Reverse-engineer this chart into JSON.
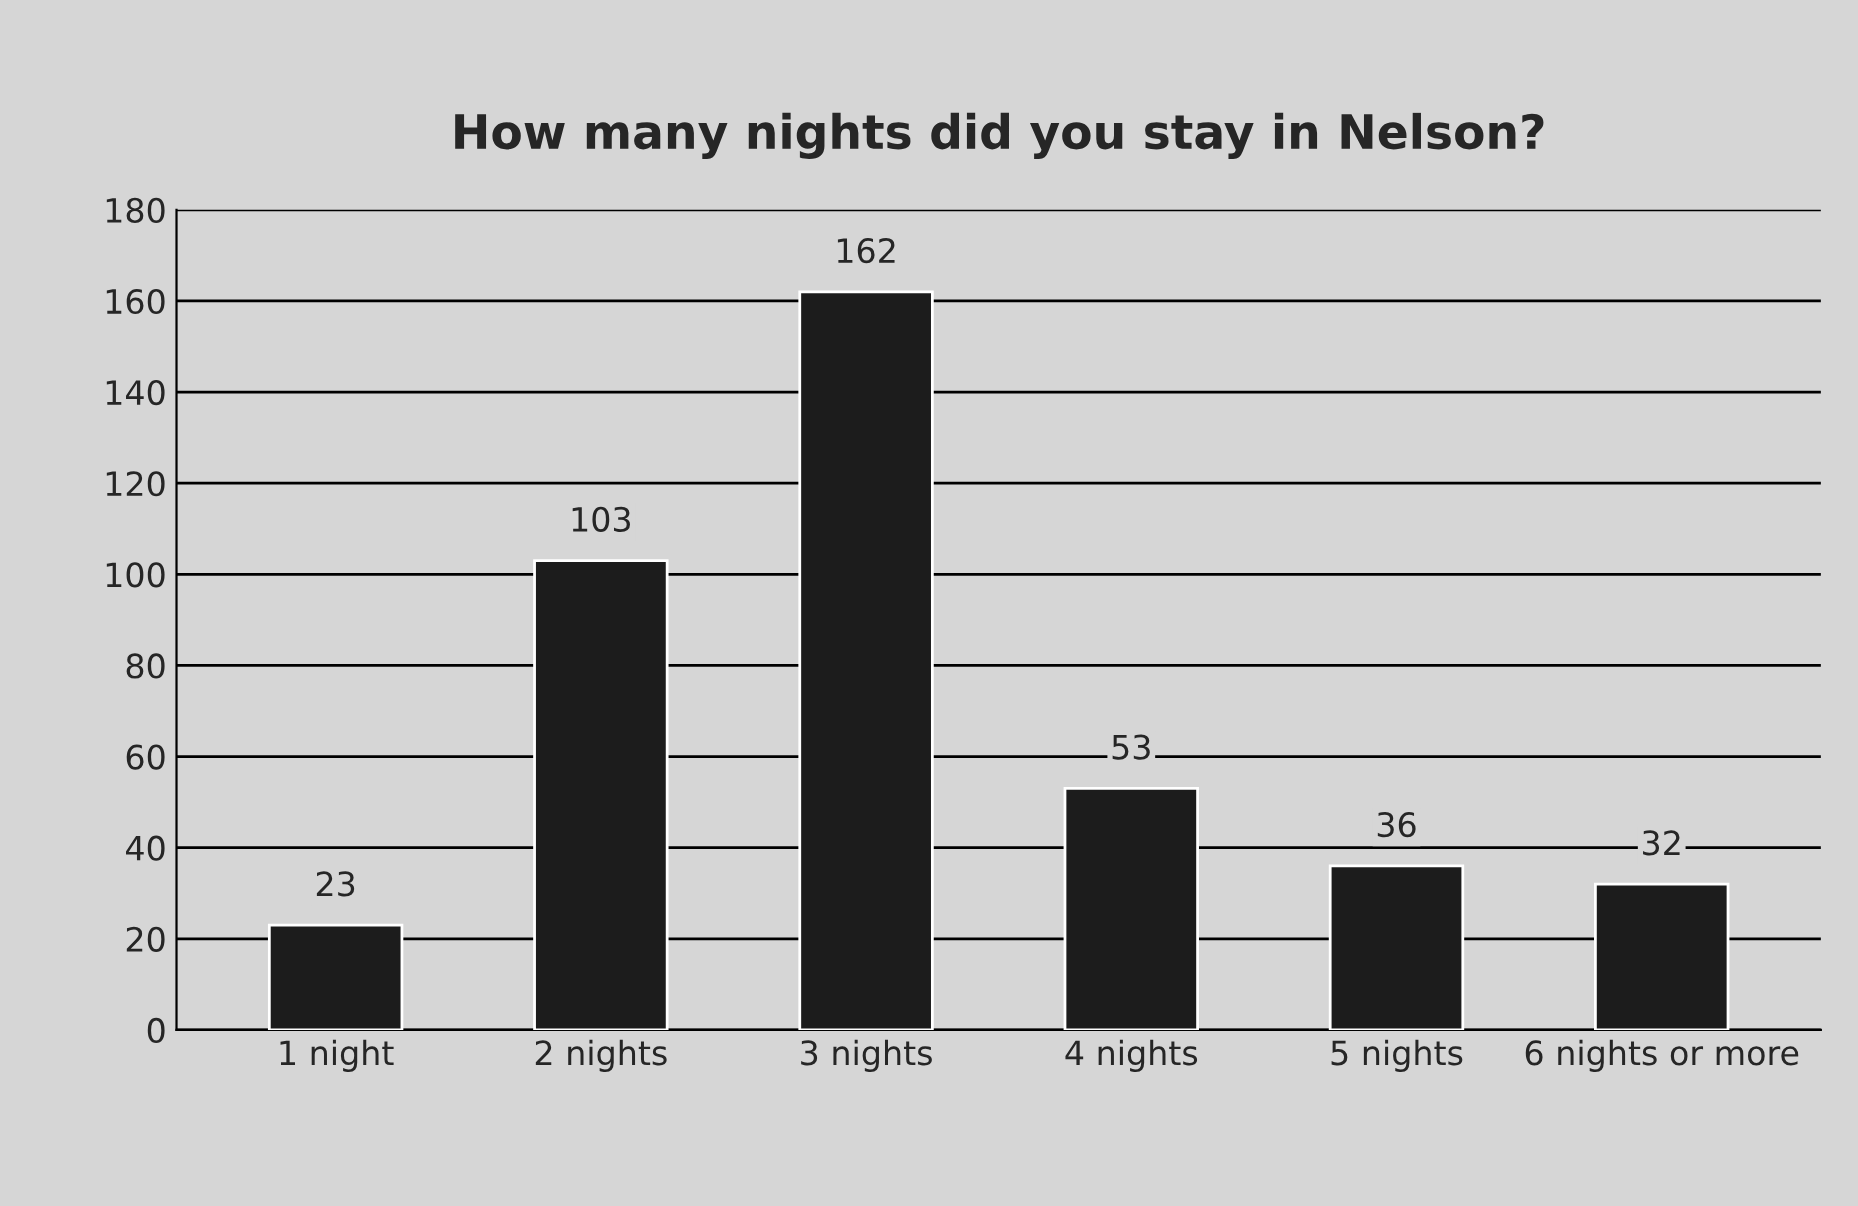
{
  "chart_data": {
    "type": "bar",
    "title": "How many nights did you stay in Nelson?",
    "categories": [
      "1 night",
      "2 nights",
      "3 nights",
      "4 nights",
      "5 nights",
      "6 nights or more"
    ],
    "values": [
      23,
      103,
      162,
      53,
      36,
      32
    ],
    "color": "#1c1c1c",
    "ylim": [
      0,
      180
    ],
    "yticks": [
      0,
      20,
      40,
      60,
      80,
      100,
      120,
      140,
      160,
      180
    ],
    "grid": "y",
    "data_labels": true
  }
}
